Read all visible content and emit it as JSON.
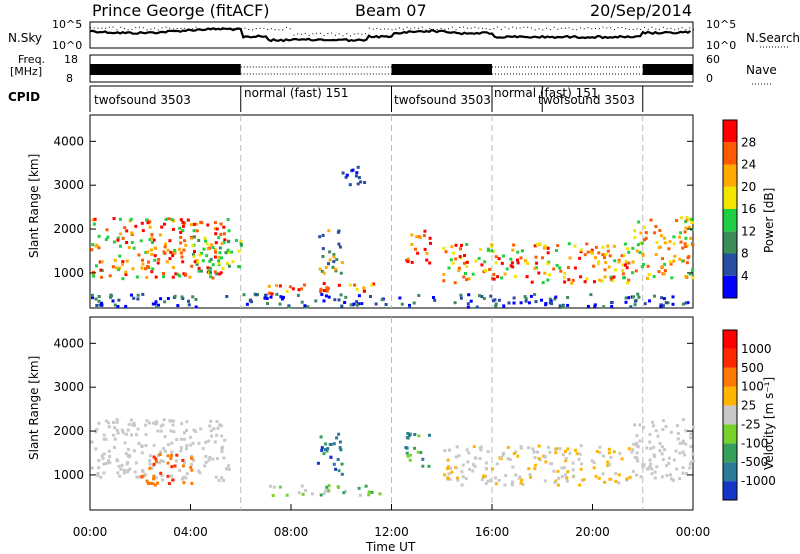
{
  "header": {
    "station": "Prince George (fitACF)",
    "beam": "Beam 07",
    "date": "20/Sep/2014"
  },
  "noise_panel": {
    "left_label": "N.Sky",
    "right_label": "N.Search",
    "left_ticks": [
      "10^5",
      "10^0"
    ],
    "right_ticks": [
      "10^5",
      "10^0"
    ]
  },
  "freq_panel": {
    "left_label_1": "Freq.",
    "left_label_2": "[MHz]",
    "left_ticks": [
      "18",
      "8"
    ],
    "right_label": "Nave",
    "right_ticks": [
      "60",
      "0"
    ]
  },
  "cpid_panel": {
    "label": "CPID",
    "segments": [
      {
        "name": "twofsound 3503",
        "start_hour": 0,
        "end_hour": 6
      },
      {
        "name": "normal (fast) 151",
        "start_hour": 6,
        "end_hour": 12
      },
      {
        "name": "twofsound 3503",
        "start_hour": 12,
        "end_hour": 16
      },
      {
        "name": "normal (fast) 151",
        "start_hour": 16,
        "end_hour": 20
      },
      {
        "name": "twofsound 3503",
        "start_hour": 18,
        "end_hour": 22
      }
    ]
  },
  "chart_data": [
    {
      "type": "heatmap",
      "ylabel": "Slant Range [km]",
      "ylim": [
        200,
        4600
      ],
      "yticks": [
        1000,
        2000,
        3000,
        4000
      ],
      "colorbar": {
        "label": "Power [dB]",
        "range": [
          0,
          32
        ],
        "ticks": [
          4,
          8,
          12,
          16,
          20,
          24,
          28
        ],
        "colors": [
          "#0000ff",
          "#284ea0",
          "#3c8c5a",
          "#1fcf43",
          "#f2e600",
          "#ffaa00",
          "#ff5a00",
          "#ff0000"
        ]
      }
    },
    {
      "type": "heatmap",
      "ylabel": "Slant Range [km]",
      "ylim": [
        200,
        4600
      ],
      "yticks": [
        1000,
        2000,
        3000,
        4000
      ],
      "colorbar": {
        "label": "Velocity [m s⁻¹]",
        "ticks": [
          "1000",
          "500",
          "100",
          "25",
          "-25",
          "-100",
          "-500",
          "-1000"
        ],
        "colors": [
          "#1436c8",
          "#2a7a9a",
          "#36a05a",
          "#78d22c",
          "#c8c8c8",
          "#ffb400",
          "#ff7800",
          "#ff2800",
          "#ff0000"
        ]
      }
    }
  ],
  "time_axis": {
    "label": "Time UT",
    "range_hours": [
      0,
      24
    ],
    "ticks": [
      "00:00",
      "04:00",
      "08:00",
      "12:00",
      "16:00",
      "20:00",
      "00:00"
    ]
  }
}
